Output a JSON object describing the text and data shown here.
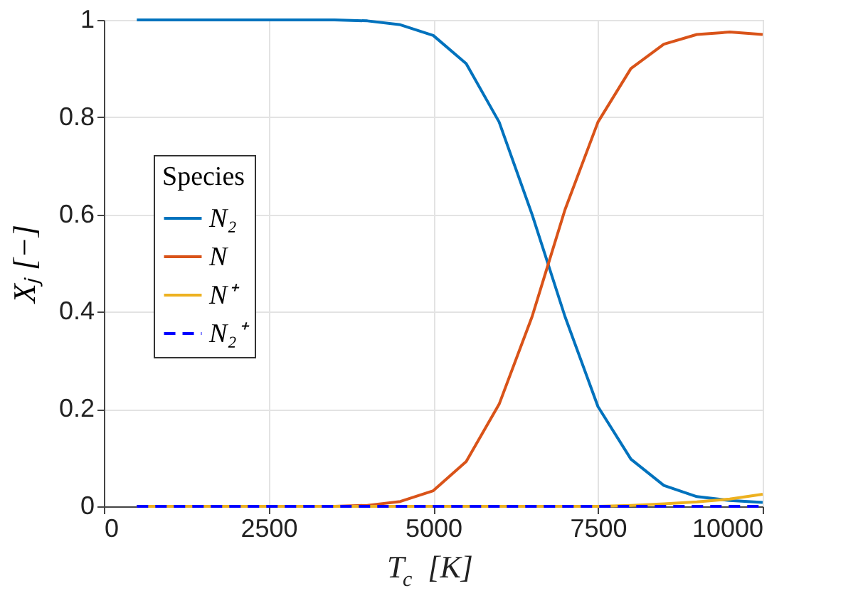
{
  "chart_data": {
    "type": "line",
    "xlabel": "T$_{c}$ [K]",
    "ylabel": "Xⱼ [−]",
    "legend_title": "Species",
    "x": [
      500,
      1000,
      1500,
      2000,
      2500,
      3000,
      3500,
      4000,
      4500,
      5000,
      5500,
      6000,
      6500,
      7000,
      7500,
      8000,
      8500,
      9000,
      9500,
      10000
    ],
    "series": [
      {
        "name": "N₂",
        "color": "#0072bd",
        "line_style": "solid",
        "values": [
          1,
          1,
          1,
          1,
          1,
          1,
          1,
          0.998,
          0.99,
          0.968,
          0.91,
          0.79,
          0.6,
          0.39,
          0.205,
          0.097,
          0.043,
          0.02,
          0.012,
          0.008
        ]
      },
      {
        "name": "N",
        "color": "#d95319",
        "line_style": "solid",
        "values": [
          null,
          null,
          null,
          null,
          null,
          0,
          0,
          0.002,
          0.01,
          0.032,
          0.092,
          0.21,
          0.39,
          0.61,
          0.79,
          0.9,
          0.95,
          0.97,
          0.975,
          0.97
        ]
      },
      {
        "name": "N⁺",
        "color": "#edb120",
        "line_style": "solid",
        "values": [
          0,
          0,
          0,
          0,
          0,
          0,
          0,
          0,
          0,
          0,
          0,
          0,
          0,
          0,
          0,
          0.002,
          0.005,
          0.009,
          0.015,
          0.025
        ]
      },
      {
        "name": "N₂⁺",
        "color": "#0000ff",
        "line_style": "dashed",
        "values": [
          0,
          0,
          0,
          0,
          0,
          0,
          0,
          0,
          0,
          0,
          0,
          0,
          0,
          0,
          0,
          0,
          0,
          0,
          0,
          0
        ]
      }
    ],
    "xlim": [
      0,
      10000
    ],
    "xticks": [
      0,
      2500,
      5000,
      7500,
      10000
    ],
    "ylim": [
      0,
      1
    ],
    "yticks": [
      0,
      0.2,
      0.4,
      0.6,
      0.8,
      1
    ],
    "grid": true,
    "legend": "left",
    "marker": "none"
  }
}
